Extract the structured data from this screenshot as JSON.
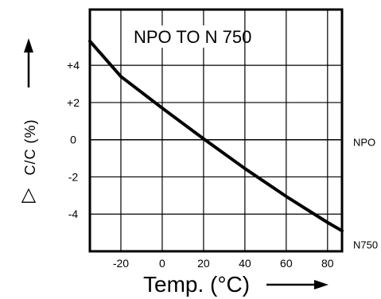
{
  "chart_data": {
    "type": "line",
    "title": "NPO TO N 750",
    "xlabel": "Temp. (°C)",
    "ylabel_delta": "△",
    "ylabel": "C/C (%)",
    "xlim": [
      -35,
      87
    ],
    "ylim": [
      -6,
      7
    ],
    "x_ticks": [
      -20,
      0,
      20,
      40,
      60,
      80
    ],
    "y_ticks": [
      {
        "value": 4,
        "label": "+4"
      },
      {
        "value": 2,
        "label": "+2"
      },
      {
        "value": 0,
        "label": "0"
      },
      {
        "value": -2,
        "label": "-2"
      },
      {
        "value": -4,
        "label": "-4"
      }
    ],
    "grid": true,
    "series": [
      {
        "name": "NPO",
        "x": [
          -35,
          87
        ],
        "y": [
          0,
          0
        ]
      },
      {
        "name": "N750",
        "x": [
          -35,
          -20,
          0,
          20,
          40,
          60,
          80,
          87
        ],
        "y": [
          5.3,
          3.4,
          1.7,
          0.05,
          -1.55,
          -3.05,
          -4.45,
          -4.9
        ]
      }
    ],
    "colors": {
      "line": "#000000",
      "grid": "#000000",
      "background": "#ffffff"
    }
  }
}
